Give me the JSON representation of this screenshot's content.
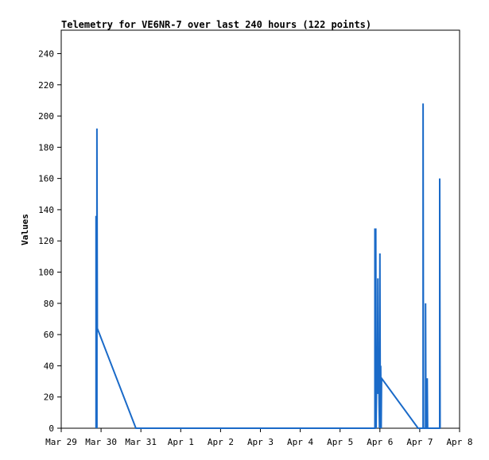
{
  "chart_data": {
    "type": "line",
    "title": "Telemetry for VE6NR-7 over last 240 hours (122 points)",
    "ylabel": "Values",
    "xlabel": "",
    "xlim": [
      "Mar 29",
      "Apr 8"
    ],
    "ylim": [
      0,
      255
    ],
    "x_ticks": [
      "Mar 29",
      "Mar 30",
      "Mar 31",
      "Apr 1",
      "Apr 2",
      "Apr 3",
      "Apr 4",
      "Apr 5",
      "Apr 6",
      "Apr 7",
      "Apr 8"
    ],
    "y_ticks": [
      0,
      20,
      40,
      60,
      80,
      100,
      120,
      140,
      160,
      180,
      200,
      220,
      240
    ],
    "grid": false,
    "line_color": "#1a6ac8",
    "series": [
      {
        "points": [
          [
            "Mar 29 21:00",
            0
          ],
          [
            "Mar 29 21:00",
            136
          ],
          [
            "Mar 29 21:30",
            0
          ],
          [
            "Mar 29 21:30",
            192
          ],
          [
            "Mar 29 21:45",
            64
          ],
          [
            "Mar 30 21:00",
            0
          ],
          [
            "Apr 5 21:00",
            0
          ],
          [
            "Apr 5 21:00",
            128
          ],
          [
            "Apr 5 21:15",
            0
          ],
          [
            "Apr 5 21:30",
            128
          ],
          [
            "Apr 5 21:45",
            0
          ],
          [
            "Apr 5 22:00",
            30
          ],
          [
            "Apr 5 22:30",
            22
          ],
          [
            "Apr 5 22:45",
            96
          ],
          [
            "Apr 5 23:00",
            25
          ],
          [
            "Apr 5 23:15",
            43
          ],
          [
            "Apr 5 23:30",
            15
          ],
          [
            "Apr 5 23:45",
            0
          ],
          [
            "Apr 6 00:00",
            112
          ],
          [
            "Apr 6 00:15",
            0
          ],
          [
            "Apr 6 00:30",
            40
          ],
          [
            "Apr 6 00:45",
            0
          ],
          [
            "Apr 6 01:00",
            32
          ],
          [
            "Apr 6 23:00",
            0
          ],
          [
            "Apr 7 02:00",
            0
          ],
          [
            "Apr 7 02:00",
            208
          ],
          [
            "Apr 7 02:15",
            0
          ],
          [
            "Apr 7 03:30",
            0
          ],
          [
            "Apr 7 03:30",
            80
          ],
          [
            "Apr 7 03:45",
            0
          ],
          [
            "Apr 7 04:30",
            0
          ],
          [
            "Apr 7 04:30",
            32
          ],
          [
            "Apr 7 04:45",
            0
          ],
          [
            "Apr 7 12:00",
            0
          ],
          [
            "Apr 7 12:00",
            160
          ],
          [
            "Apr 7 12:15",
            0
          ]
        ]
      }
    ]
  }
}
